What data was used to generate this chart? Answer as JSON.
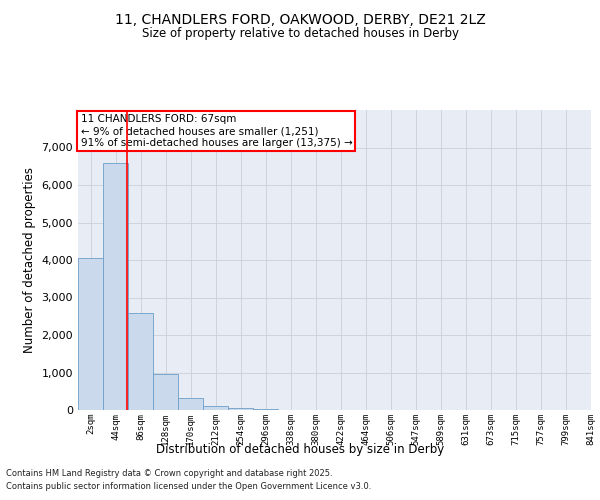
{
  "title1": "11, CHANDLERS FORD, OAKWOOD, DERBY, DE21 2LZ",
  "title2": "Size of property relative to detached houses in Derby",
  "xlabel": "Distribution of detached houses by size in Derby",
  "ylabel": "Number of detached properties",
  "bin_labels": [
    "2sqm",
    "44sqm",
    "86sqm",
    "128sqm",
    "170sqm",
    "212sqm",
    "254sqm",
    "296sqm",
    "338sqm",
    "380sqm",
    "422sqm",
    "464sqm",
    "506sqm",
    "547sqm",
    "589sqm",
    "631sqm",
    "673sqm",
    "715sqm",
    "757sqm",
    "799sqm",
    "841sqm"
  ],
  "bar_values": [
    4050,
    6600,
    2600,
    950,
    320,
    100,
    50,
    30,
    5,
    5,
    2,
    0,
    0,
    0,
    0,
    0,
    0,
    0,
    0,
    0
  ],
  "bar_color": "#cad9ec",
  "bar_edge_color": "#6c9ec8",
  "red_line_x": 1.45,
  "annotation_title": "11 CHANDLERS FORD: 67sqm",
  "annotation_line2": "← 9% of detached houses are smaller (1,251)",
  "annotation_line3": "91% of semi-detached houses are larger (13,375) →",
  "ylim": [
    0,
    8000
  ],
  "yticks": [
    0,
    1000,
    2000,
    3000,
    4000,
    5000,
    6000,
    7000
  ],
  "grid_color": "#c8d0dc",
  "bg_color": "#e8edf5",
  "footer1": "Contains HM Land Registry data © Crown copyright and database right 2025.",
  "footer2": "Contains public sector information licensed under the Open Government Licence v3.0."
}
